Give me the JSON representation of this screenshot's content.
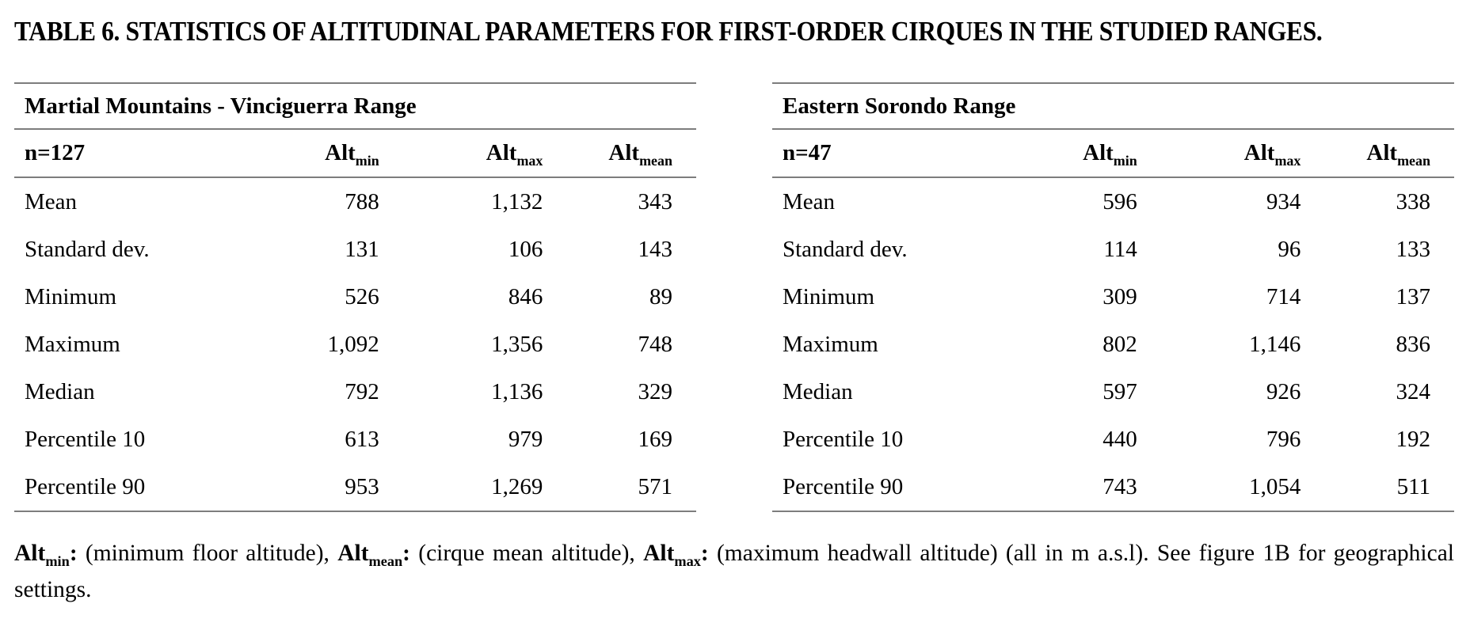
{
  "title": "TABLE 6. STATISTICS OF ALTITUDINAL PARAMETERS FOR FIRST-ORDER CIRQUES IN THE STUDIED RANGES.",
  "tables": {
    "left": {
      "range_title": "Martial Mountains - Vinciguerra Range",
      "n_label": "n=127",
      "columns": [
        {
          "base": "Alt",
          "sub": "min"
        },
        {
          "base": "Alt",
          "sub": "max"
        },
        {
          "base": "Alt",
          "sub": "mean"
        }
      ],
      "rows": [
        {
          "label": "Mean",
          "alt_min": "788",
          "alt_max": "1,132",
          "alt_mean": "343"
        },
        {
          "label": "Standard dev.",
          "alt_min": "131",
          "alt_max": "106",
          "alt_mean": "143"
        },
        {
          "label": "Minimum",
          "alt_min": "526",
          "alt_max": "846",
          "alt_mean": "89"
        },
        {
          "label": "Maximum",
          "alt_min": "1,092",
          "alt_max": "1,356",
          "alt_mean": "748"
        },
        {
          "label": "Median",
          "alt_min": "792",
          "alt_max": "1,136",
          "alt_mean": "329"
        },
        {
          "label": "Percentile 10",
          "alt_min": "613",
          "alt_max": "979",
          "alt_mean": "169"
        },
        {
          "label": "Percentile 90",
          "alt_min": "953",
          "alt_max": "1,269",
          "alt_mean": "571"
        }
      ]
    },
    "right": {
      "range_title": "Eastern Sorondo Range",
      "n_label": "n=47",
      "columns": [
        {
          "base": "Alt",
          "sub": "min"
        },
        {
          "base": "Alt",
          "sub": "max"
        },
        {
          "base": "Alt",
          "sub": "mean"
        }
      ],
      "rows": [
        {
          "label": "Mean",
          "alt_min": "596",
          "alt_max": "934",
          "alt_mean": "338"
        },
        {
          "label": "Standard dev.",
          "alt_min": "114",
          "alt_max": "96",
          "alt_mean": "133"
        },
        {
          "label": "Minimum",
          "alt_min": "309",
          "alt_max": "714",
          "alt_mean": "137"
        },
        {
          "label": "Maximum",
          "alt_min": "802",
          "alt_max": "1,146",
          "alt_mean": "836"
        },
        {
          "label": "Median",
          "alt_min": "597",
          "alt_max": "926",
          "alt_mean": "324"
        },
        {
          "label": "Percentile 10",
          "alt_min": "440",
          "alt_max": "796",
          "alt_mean": "192"
        },
        {
          "label": "Percentile 90",
          "alt_min": "743",
          "alt_max": "1,054",
          "alt_mean": "511"
        }
      ]
    }
  },
  "footnote": {
    "terms": [
      {
        "base": "Alt",
        "sub": "min",
        "colon": ":",
        "desc": " (minimum floor altitude), "
      },
      {
        "base": "Alt",
        "sub": "mean",
        "colon": ":",
        "desc": " (cirque mean altitude), "
      },
      {
        "base": "Alt",
        "sub": "max",
        "colon": ":",
        "desc": " (maximum headwall altitude) (all in m a.s.l). See figure 1B for geographical settings."
      }
    ]
  }
}
